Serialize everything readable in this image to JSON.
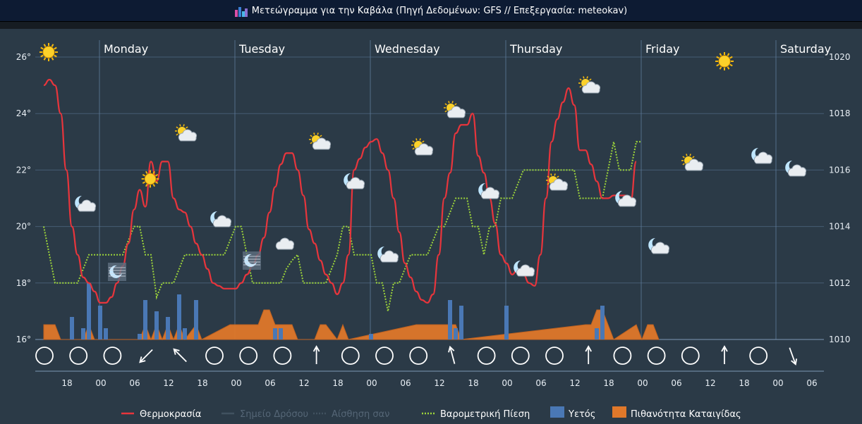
{
  "header": {
    "title": "Μετεώγραμμα για την Καβάλα (Πηγή Δεδομένων: GFS // Επεξεργασία: meteokav)"
  },
  "colors": {
    "temp": "#e8353c",
    "pressure": "#9ed63a",
    "rain": "#4a78b5",
    "storm": "#e0782a",
    "grid": "#5d7a9a",
    "bg": "#2b3a47"
  },
  "chart_data": {
    "type": "line",
    "title": "",
    "y_left": {
      "ticks": [
        "16°",
        "18°",
        "20°",
        "22°",
        "24°",
        "26°"
      ],
      "range": [
        16,
        26
      ]
    },
    "y_right": {
      "ticks": [
        "1010",
        "1012",
        "1014",
        "1016",
        "1018",
        "1020"
      ],
      "range": [
        1010,
        1020
      ]
    },
    "day_labels": [
      "Monday",
      "Tuesday",
      "Wednesday",
      "Thursday",
      "Friday",
      "Saturday"
    ],
    "hour_labels": [
      "18",
      "00",
      "06",
      "12",
      "18",
      "00",
      "06",
      "12",
      "18",
      "00",
      "06",
      "12",
      "18",
      "00",
      "06",
      "12",
      "18",
      "00",
      "06",
      "12",
      "18",
      "00",
      "06"
    ],
    "legend": [
      "Θερμοκρασία",
      "Σημείο Δρόσου",
      "Αίσθηση σαν",
      "Βαρομετρική Πίεση",
      "Υετός",
      "Πιθανότητα Καταιγίδας"
    ],
    "x_hours_start": 14,
    "temperature": [
      [
        14,
        25
      ],
      [
        15,
        25.2
      ],
      [
        16,
        25
      ],
      [
        17,
        24
      ],
      [
        18,
        22
      ],
      [
        19,
        20
      ],
      [
        20,
        19
      ],
      [
        21,
        18.2
      ],
      [
        22,
        18
      ],
      [
        23,
        17.7
      ],
      [
        0,
        17.3
      ],
      [
        1,
        17.3
      ],
      [
        2,
        17.5
      ],
      [
        3,
        18
      ],
      [
        4,
        18.6
      ],
      [
        5,
        19.4
      ],
      [
        6,
        20.6
      ],
      [
        7,
        21.3
      ],
      [
        8,
        20.7
      ],
      [
        9,
        22.3
      ],
      [
        10,
        21.6
      ],
      [
        11,
        22.3
      ],
      [
        12,
        22.3
      ],
      [
        13,
        21
      ],
      [
        14,
        20.6
      ],
      [
        15,
        20.5
      ],
      [
        16,
        20
      ],
      [
        17,
        19.4
      ],
      [
        18,
        19
      ],
      [
        19,
        18.5
      ],
      [
        20,
        18
      ],
      [
        21,
        17.9
      ],
      [
        22,
        17.8
      ],
      [
        23,
        17.8
      ],
      [
        0,
        17.8
      ],
      [
        1,
        18
      ],
      [
        2,
        18.3
      ],
      [
        3,
        18.6
      ],
      [
        4,
        19
      ],
      [
        5,
        19.6
      ],
      [
        6,
        20.5
      ],
      [
        7,
        21.4
      ],
      [
        8,
        22.2
      ],
      [
        9,
        22.6
      ],
      [
        10,
        22.6
      ],
      [
        11,
        22
      ],
      [
        12,
        21.1
      ],
      [
        13,
        19.9
      ],
      [
        14,
        19.4
      ],
      [
        15,
        18.8
      ],
      [
        16,
        18.3
      ],
      [
        17,
        18
      ],
      [
        18,
        17.6
      ],
      [
        19,
        18
      ],
      [
        20,
        19
      ],
      [
        21,
        22
      ],
      [
        22,
        22.4
      ],
      [
        23,
        22.8
      ],
      [
        0,
        23
      ],
      [
        1,
        23.1
      ],
      [
        2,
        22.6
      ],
      [
        3,
        22
      ],
      [
        4,
        21
      ],
      [
        5,
        19.8
      ],
      [
        6,
        18.7
      ],
      [
        7,
        18.2
      ],
      [
        8,
        17.7
      ],
      [
        9,
        17.4
      ],
      [
        10,
        17.3
      ],
      [
        11,
        17.6
      ],
      [
        12,
        19
      ],
      [
        13,
        21
      ],
      [
        14,
        21.9
      ],
      [
        15,
        23.3
      ],
      [
        16,
        23.6
      ],
      [
        17,
        23.6
      ],
      [
        18,
        24
      ],
      [
        19,
        22.5
      ],
      [
        20,
        21.9
      ],
      [
        21,
        21
      ],
      [
        22,
        20.1
      ],
      [
        23,
        19
      ],
      [
        0,
        18.7
      ],
      [
        1,
        18.3
      ],
      [
        2,
        18.5
      ],
      [
        3,
        18.3
      ],
      [
        4,
        18
      ],
      [
        5,
        17.9
      ],
      [
        6,
        19
      ],
      [
        7,
        21
      ],
      [
        8,
        23
      ],
      [
        9,
        23.8
      ],
      [
        10,
        24.4
      ],
      [
        11,
        24.9
      ],
      [
        12,
        24.3
      ],
      [
        13,
        22.7
      ],
      [
        14,
        22.7
      ],
      [
        15,
        22.2
      ],
      [
        16,
        21.6
      ],
      [
        17,
        21
      ],
      [
        18,
        21
      ],
      [
        19,
        21.1
      ],
      [
        20,
        21.1
      ],
      [
        21,
        21.1
      ],
      [
        22,
        20.9
      ],
      [
        23,
        22.3
      ]
    ],
    "pressure": [
      [
        14,
        1014
      ],
      [
        15,
        1013
      ],
      [
        16,
        1012
      ],
      [
        17,
        1012
      ],
      [
        18,
        1012
      ],
      [
        19,
        1012
      ],
      [
        20,
        1012
      ],
      [
        21,
        1012.5
      ],
      [
        22,
        1013
      ],
      [
        23,
        1013
      ],
      [
        0,
        1013
      ],
      [
        1,
        1013
      ],
      [
        2,
        1013
      ],
      [
        3,
        1013
      ],
      [
        4,
        1013
      ],
      [
        5,
        1013.5
      ],
      [
        6,
        1014
      ],
      [
        7,
        1014
      ],
      [
        8,
        1013
      ],
      [
        9,
        1013
      ],
      [
        10,
        1011.5
      ],
      [
        11,
        1012
      ],
      [
        12,
        1012
      ],
      [
        13,
        1012
      ],
      [
        14,
        1012.5
      ],
      [
        15,
        1013
      ],
      [
        16,
        1013
      ],
      [
        17,
        1013
      ],
      [
        18,
        1013
      ],
      [
        19,
        1013
      ],
      [
        20,
        1013
      ],
      [
        21,
        1013
      ],
      [
        22,
        1013
      ],
      [
        23,
        1013.5
      ],
      [
        0,
        1014
      ],
      [
        1,
        1014
      ],
      [
        2,
        1013
      ],
      [
        3,
        1012
      ],
      [
        4,
        1012
      ],
      [
        5,
        1012
      ],
      [
        6,
        1012
      ],
      [
        7,
        1012
      ],
      [
        8,
        1012
      ],
      [
        9,
        1012.5
      ],
      [
        10,
        1012.8
      ],
      [
        11,
        1013
      ],
      [
        12,
        1012
      ],
      [
        13,
        1012
      ],
      [
        14,
        1012
      ],
      [
        15,
        1012
      ],
      [
        16,
        1012
      ],
      [
        17,
        1012.5
      ],
      [
        18,
        1013
      ],
      [
        19,
        1014
      ],
      [
        20,
        1014
      ],
      [
        21,
        1013
      ],
      [
        22,
        1013
      ],
      [
        23,
        1013
      ],
      [
        0,
        1013
      ],
      [
        1,
        1012
      ],
      [
        2,
        1012
      ],
      [
        3,
        1011
      ],
      [
        4,
        1012
      ],
      [
        5,
        1012
      ],
      [
        6,
        1012.5
      ],
      [
        7,
        1013
      ],
      [
        8,
        1013
      ],
      [
        9,
        1013
      ],
      [
        10,
        1013
      ],
      [
        11,
        1013.5
      ],
      [
        12,
        1014
      ],
      [
        13,
        1014
      ],
      [
        14,
        1014.5
      ],
      [
        15,
        1015
      ],
      [
        16,
        1015
      ],
      [
        17,
        1015
      ],
      [
        18,
        1014
      ],
      [
        19,
        1014
      ],
      [
        20,
        1013
      ],
      [
        21,
        1014
      ],
      [
        22,
        1014
      ],
      [
        23,
        1015
      ],
      [
        0,
        1015
      ],
      [
        1,
        1015
      ],
      [
        2,
        1015.5
      ],
      [
        3,
        1016
      ],
      [
        4,
        1016
      ],
      [
        5,
        1016
      ],
      [
        6,
        1016
      ],
      [
        7,
        1016
      ],
      [
        8,
        1016
      ],
      [
        9,
        1016
      ],
      [
        10,
        1016
      ],
      [
        11,
        1016
      ],
      [
        12,
        1016
      ],
      [
        13,
        1015
      ],
      [
        14,
        1015
      ],
      [
        15,
        1015
      ],
      [
        16,
        1015
      ],
      [
        17,
        1015
      ],
      [
        18,
        1016
      ],
      [
        19,
        1017
      ],
      [
        20,
        1016
      ],
      [
        21,
        1016
      ],
      [
        22,
        1016
      ],
      [
        23,
        1017
      ],
      [
        0,
        1017
      ]
    ],
    "precipitation": [
      [
        19,
        0.4
      ],
      [
        21,
        0.2
      ],
      [
        22,
        1.0
      ],
      [
        0,
        0.6
      ],
      [
        1,
        0.2
      ],
      [
        7,
        0.1
      ],
      [
        8,
        0.7
      ],
      [
        10,
        0.5
      ],
      [
        12,
        0.4
      ],
      [
        14,
        0.8
      ],
      [
        15,
        0.2
      ],
      [
        17,
        0.7
      ],
      [
        7,
        0.2
      ],
      [
        8,
        0.2
      ],
      [
        0,
        0.1
      ],
      [
        14,
        0.2
      ],
      [
        14,
        0.7
      ],
      [
        15,
        0.2
      ],
      [
        16,
        0.6
      ],
      [
        0,
        0.6
      ],
      [
        16,
        0.2
      ],
      [
        17,
        0.6
      ]
    ],
    "storm_probability": [
      [
        14,
        1
      ],
      [
        16,
        1
      ],
      [
        17,
        0
      ],
      [
        21,
        0
      ],
      [
        22,
        1
      ],
      [
        23,
        0
      ],
      [
        7,
        0
      ],
      [
        8,
        1
      ],
      [
        9,
        0
      ],
      [
        10,
        1
      ],
      [
        11,
        0
      ],
      [
        12,
        1
      ],
      [
        13,
        0
      ],
      [
        14,
        1
      ],
      [
        15,
        0
      ],
      [
        17,
        1
      ],
      [
        18,
        0
      ],
      [
        23,
        1
      ],
      [
        0,
        1
      ],
      [
        4,
        1
      ],
      [
        5,
        2
      ],
      [
        6,
        2
      ],
      [
        7,
        1
      ],
      [
        10,
        1
      ],
      [
        11,
        0
      ],
      [
        14,
        0
      ],
      [
        15,
        1
      ],
      [
        16,
        1
      ],
      [
        18,
        0
      ],
      [
        19,
        1
      ],
      [
        20,
        0
      ],
      [
        8,
        1
      ],
      [
        9,
        1
      ],
      [
        10,
        1
      ],
      [
        11,
        1
      ],
      [
        12,
        1
      ],
      [
        13,
        1
      ],
      [
        14,
        1
      ],
      [
        15,
        1
      ],
      [
        16,
        0
      ],
      [
        14,
        1
      ],
      [
        15,
        1
      ],
      [
        16,
        2
      ],
      [
        17,
        2
      ],
      [
        18,
        1
      ],
      [
        19,
        0
      ],
      [
        23,
        1
      ],
      [
        0,
        0
      ],
      [
        1,
        1
      ],
      [
        2,
        1
      ],
      [
        3,
        0
      ]
    ]
  }
}
